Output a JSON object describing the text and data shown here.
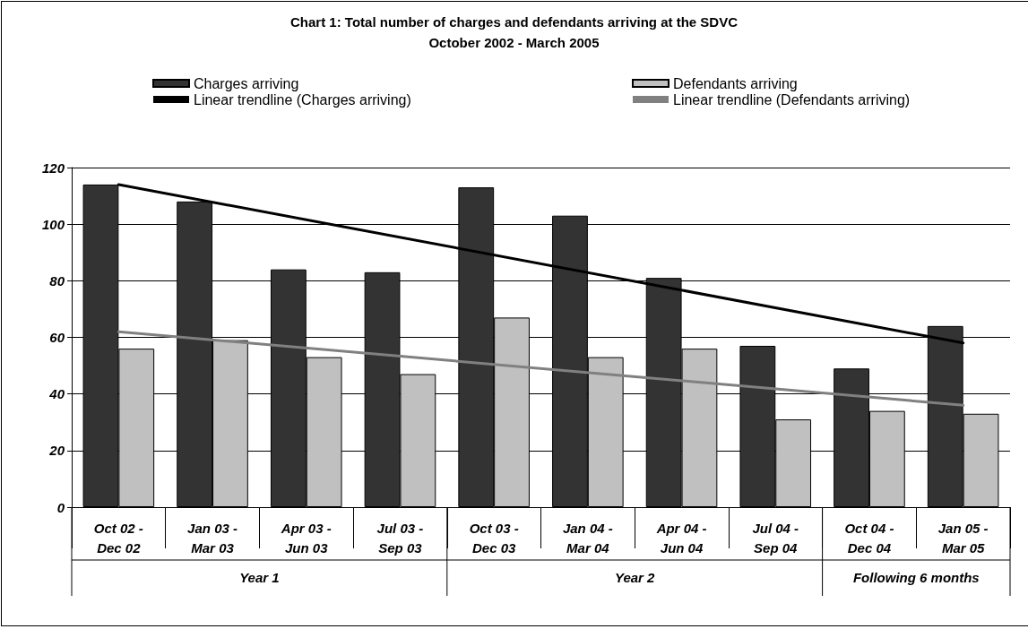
{
  "chart_data": {
    "type": "bar",
    "title": "Chart 1: Total number of charges and defendants arriving at the SDVC",
    "subtitle": "October 2002 - March 2005",
    "categories": [
      "Oct 02 -\nDec 02",
      "Jan 03 -\nMar 03",
      "Apr 03 -\nJun 03",
      "Jul 03 -\nSep 03",
      "Oct 03 -\nDec 03",
      "Jan 04 -\nMar 04",
      "Apr 04 -\nJun 04",
      "Jul 04 -\nSep 04",
      "Oct 04 -\nDec 04",
      "Jan 05 -\nMar 05"
    ],
    "series": [
      {
        "name": "Charges arriving",
        "color": "#333333",
        "values": [
          114,
          108,
          84,
          83,
          113,
          103,
          81,
          57,
          49,
          64
        ]
      },
      {
        "name": "Defendants arriving",
        "color": "#c0c0c0",
        "values": [
          56,
          59,
          53,
          47,
          67,
          53,
          56,
          31,
          34,
          33
        ]
      },
      {
        "name": "Linear trendline (Charges arriving)",
        "type": "line",
        "color": "#000000",
        "x": [
          "Oct 02 -\nDec 02",
          "Jan 05 -\nMar 05"
        ],
        "values": [
          114,
          58
        ]
      },
      {
        "name": "Linear trendline (Defendants arriving)",
        "type": "line",
        "color": "#808080",
        "x": [
          "Oct 02 -\nDec 02",
          "Jan 05 -\nMar 05"
        ],
        "values": [
          62,
          36
        ]
      }
    ],
    "annotations": [
      "Year 1",
      "Year 2",
      "Following 6 months"
    ],
    "ylim": [
      0,
      120
    ],
    "yticks": [
      0,
      20,
      40,
      60,
      80,
      100,
      120
    ],
    "grid": "y",
    "legend": "top",
    "marker": "none",
    "line_style": "solid"
  }
}
